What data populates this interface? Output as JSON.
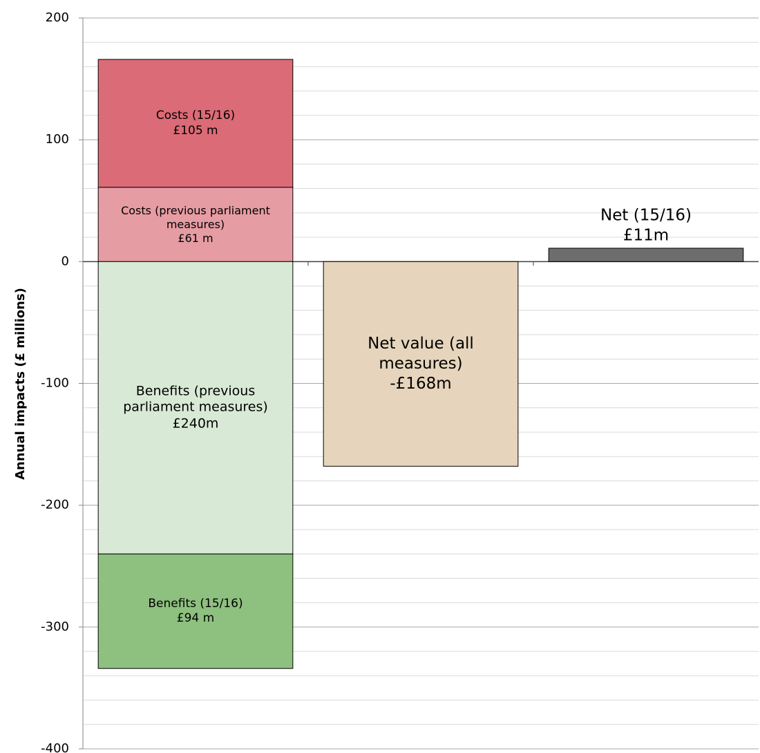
{
  "chart_data": {
    "type": "stacked_bar",
    "y_label": "Annual impacts (£ millions)",
    "categories": [
      null,
      null,
      null
    ],
    "series": [
      {
        "name": "Costs (previous parliament measures)",
        "color": "#e69ca3",
        "values": [
          61,
          null,
          null
        ],
        "value_labels": [
          "£61 m",
          null,
          null
        ]
      },
      {
        "name": "Costs (15/16)",
        "color": "#db6b76",
        "values": [
          105,
          null,
          null
        ],
        "value_labels": [
          "£105 m",
          null,
          null
        ]
      },
      {
        "name": "Benefits (previous parliament measures)",
        "color": "#d8ead6",
        "values": [
          -240,
          null,
          null
        ],
        "value_labels": [
          "£240m",
          null,
          null
        ]
      },
      {
        "name": "Benefits (15/16)",
        "color": "#8ec07f",
        "values": [
          -94,
          null,
          null
        ],
        "value_labels": [
          "£94 m",
          null,
          null
        ]
      },
      {
        "name": "Net value (all measures)",
        "color": "#e6d5bc",
        "values": [
          null,
          -168,
          null
        ],
        "value_labels": [
          null,
          "-£168m",
          null
        ]
      },
      {
        "name": "Net (15/16)",
        "color": "#6d6d6d",
        "values": [
          null,
          null,
          11
        ],
        "value_labels": [
          null,
          null,
          "£11m"
        ]
      }
    ],
    "ylim": [
      -400,
      200
    ],
    "yticks": [
      -400,
      -300,
      -200,
      -100,
      0,
      100,
      200
    ],
    "minor_yticks": [
      -380,
      -360,
      -340,
      -320,
      -280,
      -260,
      -240,
      -220,
      -180,
      -160,
      -140,
      -120,
      -80,
      -60,
      -40,
      -20,
      20,
      40,
      60,
      80,
      120,
      140,
      160,
      180
    ],
    "grid": true
  }
}
